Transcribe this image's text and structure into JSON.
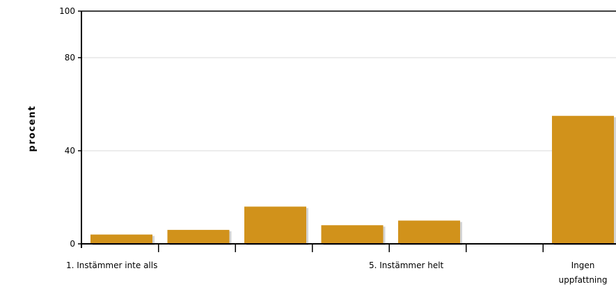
{
  "chart_data": {
    "type": "bar",
    "ylabel": "procent",
    "xlabel": "",
    "title": "",
    "ylim": [
      0,
      100
    ],
    "yticks": [
      0,
      40,
      80,
      100
    ],
    "grid": true,
    "categories": [
      "1. Instämmer inte alls",
      "",
      "",
      "",
      "5. Instämmer helt",
      "",
      "Ingen uppfattning"
    ],
    "category_label_lines": [
      [
        "1. Instämmer inte alls"
      ],
      [],
      [],
      [],
      [
        "5. Instämmer helt"
      ],
      [],
      [
        "Ingen",
        "uppfattning"
      ]
    ],
    "values": [
      4,
      6,
      16,
      8,
      10,
      0,
      55
    ],
    "colors": {
      "bar": "#D1921B",
      "bar_shadow": "#D4D4D4",
      "axis": "#000000",
      "grid": "#D9D9D9"
    }
  }
}
